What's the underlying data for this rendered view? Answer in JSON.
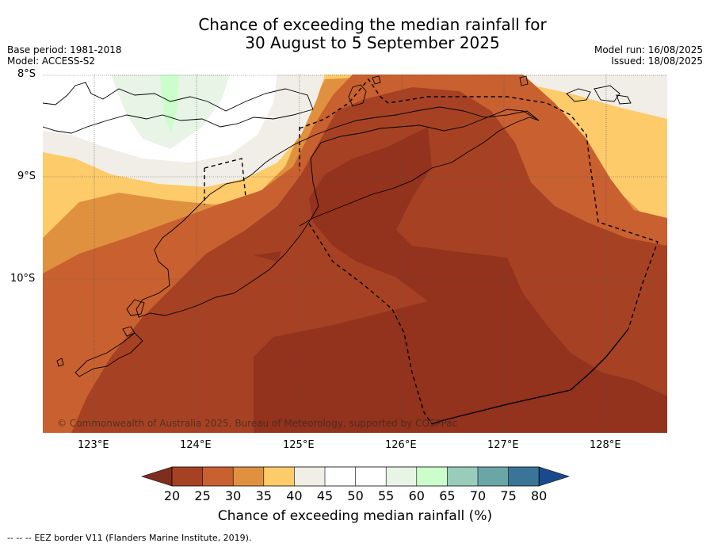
{
  "title": {
    "line1": "Chance of exceeding the median rainfall for",
    "line2": "30 August to 5 September 2025"
  },
  "meta": {
    "base_period": "Base period: 1981-2018",
    "model": "Model: ACCESS-S2",
    "model_run": "Model run: 16/08/2025",
    "issued": "Issued: 18/08/2025"
  },
  "map": {
    "lat_labels": [
      "8°S",
      "9°S",
      "10°S"
    ],
    "lon_labels": [
      "123°E",
      "124°E",
      "125°E",
      "126°E",
      "127°E",
      "128°E"
    ],
    "copyright": "© Commonwealth of Australia 2025, Bureau of Meteorology, supported by COSPPac"
  },
  "colorbar": {
    "ticks": [
      "20",
      "25",
      "30",
      "35",
      "40",
      "45",
      "50",
      "55",
      "60",
      "65",
      "70",
      "75",
      "80"
    ],
    "label": "Chance of exceeding median rainfall (%)",
    "colors": {
      "below_20": "#7e2d1e",
      "20-25": "#a64223",
      "25-30": "#c9602f",
      "30-35": "#e0913f",
      "35-40": "#fdcb6a",
      "40-45": "#f1eee7",
      "45-50": "#ffffff",
      "50-55": "#ffffff",
      "55-60": "#e7f4e6",
      "60-65": "#ccfecc",
      "65-70": "#99ccbb",
      "70-75": "#6aa6a6",
      "75-80": "#3a7597",
      "above_80": "#1a4a8c"
    }
  },
  "footnote": {
    "legend_line": "-- -- --",
    "text": "EEZ border V11 (Flanders Marine Institute, 2019)."
  }
}
